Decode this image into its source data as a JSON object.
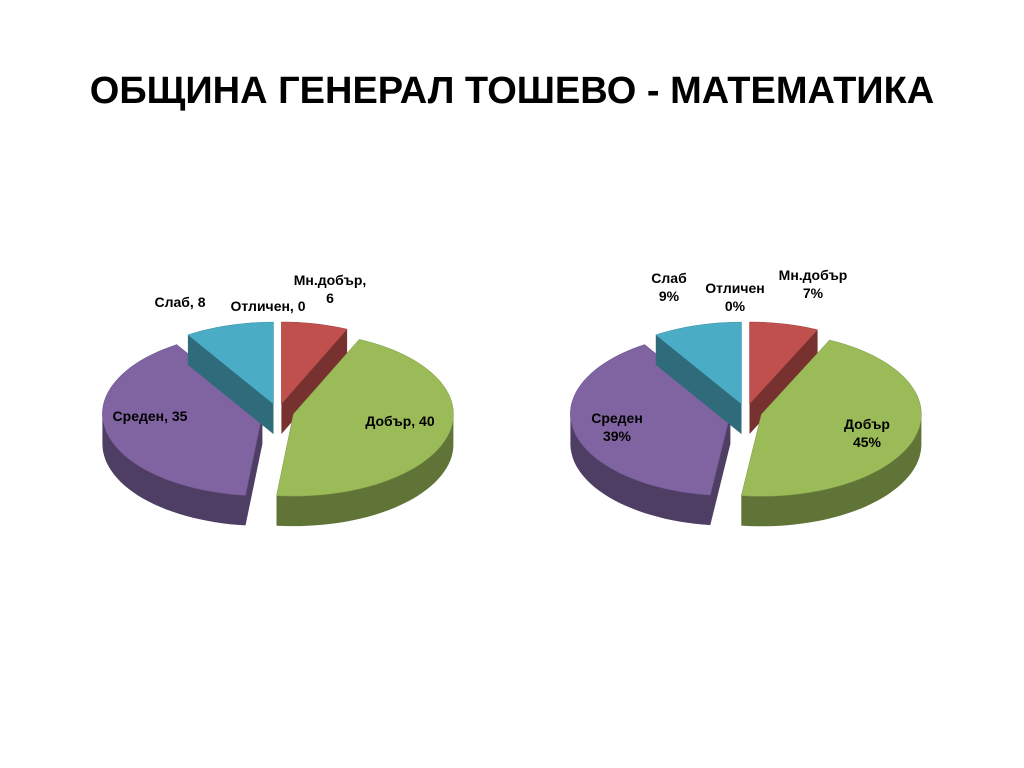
{
  "title": "ОБЩИНА ГЕНЕРАЛ ТОШЕВО - МАТЕМАТИКА",
  "chart_data": [
    {
      "type": "pie3d",
      "values": [
        0,
        6,
        40,
        35,
        8
      ],
      "value_labels": [
        "Отличен, 0",
        "Мн.добър,\n6",
        "Добър, 40",
        "Среден, 35",
        "Слаб, 8"
      ],
      "colors": [
        "#f79646",
        "#c0504d",
        "#9bbb59",
        "#8064a2",
        "#4bacc6"
      ]
    },
    {
      "type": "pie3d",
      "values": [
        0,
        7,
        45,
        39,
        9
      ],
      "value_labels": [
        "Отличен\n0%",
        "Мн.добър\n7%",
        "Добър\n45%",
        "Среден\n39%",
        "Слаб\n9%"
      ],
      "colors": [
        "#f79646",
        "#c0504d",
        "#9bbb59",
        "#8064a2",
        "#4bacc6"
      ]
    }
  ]
}
